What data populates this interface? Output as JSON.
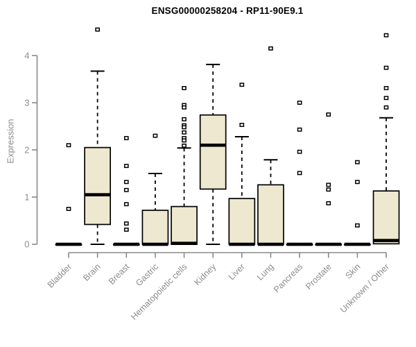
{
  "chart_data": {
    "type": "boxplot",
    "title": "ENSG00000258204 - RP11-90E9.1",
    "ylabel": "Expression",
    "xlabel": "",
    "ylim": [
      0,
      4.6
    ],
    "yticks": [
      0,
      1,
      2,
      3,
      4
    ],
    "grid": false,
    "legend": "none",
    "colors": {
      "box_fill": "#EDE8CF",
      "box_stroke": "#000000",
      "median": "#000000",
      "axis": "#888888",
      "tick_label": "#8c8c8c",
      "title": "#000000",
      "background": "#ffffff"
    },
    "categories": [
      "Bladder",
      "Brain",
      "Breast",
      "Gastric",
      "Hematopoietic cells",
      "Kidney",
      "Liver",
      "Lung",
      "Pancreas",
      "Prostate",
      "Skin",
      "Unknown / Other"
    ],
    "boxes": [
      {
        "label": "Bladder",
        "whisker_low": 0,
        "q1": 0,
        "median": 0,
        "q3": 0,
        "whisker_high": 0,
        "outliers": [
          2.1,
          0.75
        ]
      },
      {
        "label": "Brain",
        "whisker_low": 0,
        "q1": 0.42,
        "median": 1.05,
        "q3": 2.05,
        "whisker_high": 3.67,
        "outliers": [
          4.55
        ]
      },
      {
        "label": "Breast",
        "whisker_low": 0,
        "q1": 0,
        "median": 0,
        "q3": 0,
        "whisker_high": 0,
        "outliers": [
          2.25,
          1.66,
          1.32,
          1.15,
          0.85,
          0.44,
          0.31
        ]
      },
      {
        "label": "Gastric",
        "whisker_low": 0,
        "q1": 0,
        "median": 0,
        "q3": 0.72,
        "whisker_high": 1.5,
        "outliers": [
          2.3
        ]
      },
      {
        "label": "Hematopoietic cells",
        "whisker_low": 0,
        "q1": 0,
        "median": 0.02,
        "q3": 0.8,
        "whisker_high": 2.04,
        "outliers": [
          3.31,
          2.95,
          2.9,
          2.65,
          2.52,
          2.48,
          2.37,
          2.25,
          2.2,
          2.09
        ]
      },
      {
        "label": "Kidney",
        "whisker_low": 0,
        "q1": 1.17,
        "median": 2.1,
        "q3": 2.74,
        "whisker_high": 3.81,
        "outliers": []
      },
      {
        "label": "Liver",
        "whisker_low": 0,
        "q1": 0,
        "median": 0,
        "q3": 0.97,
        "whisker_high": 2.28,
        "outliers": [
          3.38,
          2.53
        ]
      },
      {
        "label": "Lung",
        "whisker_low": 0,
        "q1": 0,
        "median": 0,
        "q3": 1.26,
        "whisker_high": 1.79,
        "outliers": [
          4.15
        ]
      },
      {
        "label": "Pancreas",
        "whisker_low": 0,
        "q1": 0,
        "median": 0,
        "q3": 0,
        "whisker_high": 0,
        "outliers": [
          3.0,
          2.43,
          1.96,
          1.51
        ]
      },
      {
        "label": "Prostate",
        "whisker_low": 0,
        "q1": 0,
        "median": 0,
        "q3": 0,
        "whisker_high": 0,
        "outliers": [
          2.75,
          1.26,
          1.16,
          0.87
        ]
      },
      {
        "label": "Skin",
        "whisker_low": 0,
        "q1": 0,
        "median": 0,
        "q3": 0,
        "whisker_high": 0,
        "outliers": [
          1.74,
          1.32,
          0.4
        ]
      },
      {
        "label": "Unknown / Other",
        "whisker_low": 0.01,
        "q1": 0.01,
        "median": 0.08,
        "q3": 1.13,
        "whisker_high": 2.68,
        "outliers": [
          4.43,
          3.74,
          3.31,
          3.1,
          2.9
        ]
      }
    ]
  }
}
